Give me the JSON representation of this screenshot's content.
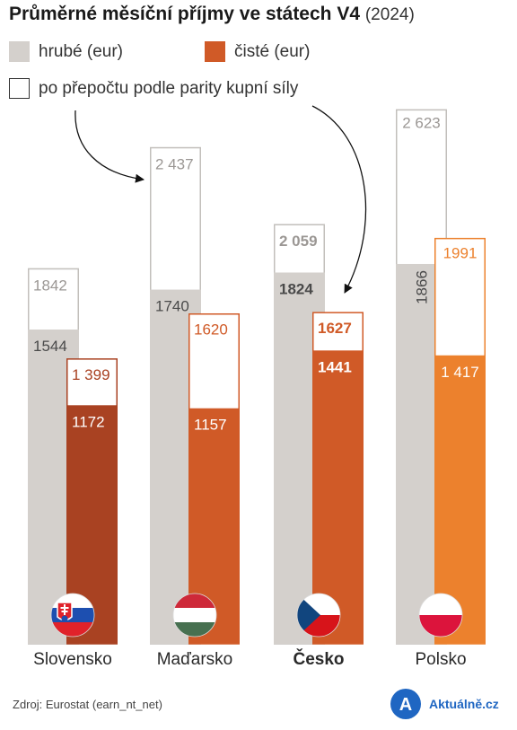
{
  "title": {
    "main": "Průměrné měsíční příjmy ve státech V4",
    "year": "(2024)"
  },
  "legend": {
    "gross": {
      "label": "hrubé (eur)",
      "color": "#d4d0cc"
    },
    "net": {
      "label": "čisté (eur)",
      "color": "#d05a27"
    },
    "ppp": {
      "label": "po přepočtu podle parity kupní síly",
      "color": "#ffffff"
    }
  },
  "source": "Zdroj: Eurostat (earn_nt_net)",
  "brand": {
    "name": "Aktuálně.cz",
    "logo_letter": "A",
    "color": "#1f66c2"
  },
  "chart_data": {
    "type": "bar",
    "categories": [
      "Slovensko",
      "Maďarsko",
      "Česko",
      "Polsko"
    ],
    "highlight_category": "Česko",
    "series": [
      {
        "name": "hrubé (eur)",
        "values": [
          1544,
          1740,
          1824,
          1866
        ],
        "labels": [
          "1544",
          "1740",
          "1824",
          "1866"
        ],
        "color": "#d4d0cc"
      },
      {
        "name": "hrubé (eur) po přepočtu podle parity kupní síly",
        "values": [
          1842,
          2437,
          2059,
          2623
        ],
        "labels": [
          "1842",
          "2 437",
          "2 059",
          "2 623"
        ]
      },
      {
        "name": "čisté (eur)",
        "values": [
          1172,
          1157,
          1441,
          1417
        ],
        "labels": [
          "1172",
          "1157",
          "1441",
          "1 417"
        ],
        "colors": [
          "#a94222",
          "#d05a27",
          "#d05a27",
          "#ec812d"
        ]
      },
      {
        "name": "čisté (eur) po přepočtu podle parity kupní síly",
        "values": [
          1399,
          1620,
          1627,
          1991
        ],
        "labels": [
          "1 399",
          "1620",
          "1627",
          "1991"
        ]
      }
    ],
    "flags": [
      "slovakia-flag",
      "hungary-flag",
      "czech-flag",
      "poland-flag"
    ],
    "ylim": [
      0,
      2730
    ],
    "grid": false
  }
}
